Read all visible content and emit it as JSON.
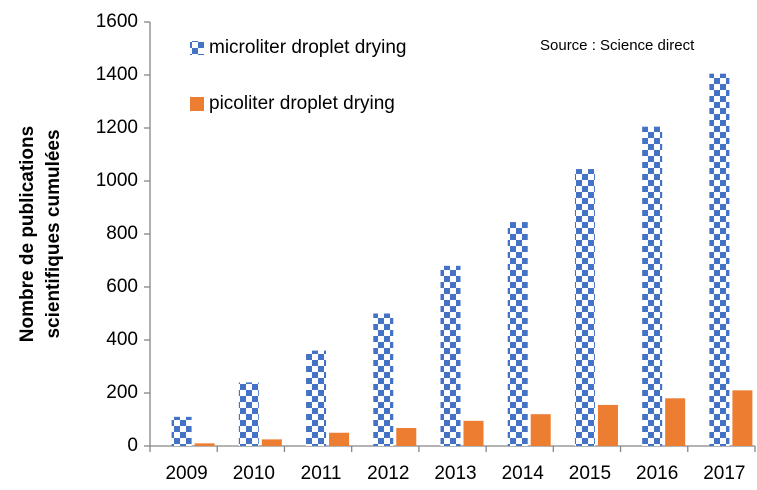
{
  "chart_data": {
    "type": "bar",
    "ylabel": [
      "Nombre de publications",
      "scientifiques cumulées"
    ],
    "annotation": "Source : Science direct",
    "categories": [
      "2009",
      "2010",
      "2011",
      "2012",
      "2013",
      "2014",
      "2015",
      "2016",
      "2017"
    ],
    "series": [
      {
        "name": "microliter droplet drying",
        "color": "#4472c4",
        "pattern": "checker",
        "values": [
          110,
          240,
          360,
          500,
          680,
          845,
          1045,
          1205,
          1405
        ]
      },
      {
        "name": "picoliter droplet drying",
        "color": "#ed7d31",
        "values": [
          10,
          25,
          50,
          68,
          95,
          120,
          155,
          180,
          210
        ]
      }
    ],
    "ylim": [
      0,
      1600
    ],
    "yticks": [
      0,
      200,
      400,
      600,
      800,
      1000,
      1200,
      1400,
      1600
    ],
    "grid": false,
    "legend": "upper left"
  }
}
